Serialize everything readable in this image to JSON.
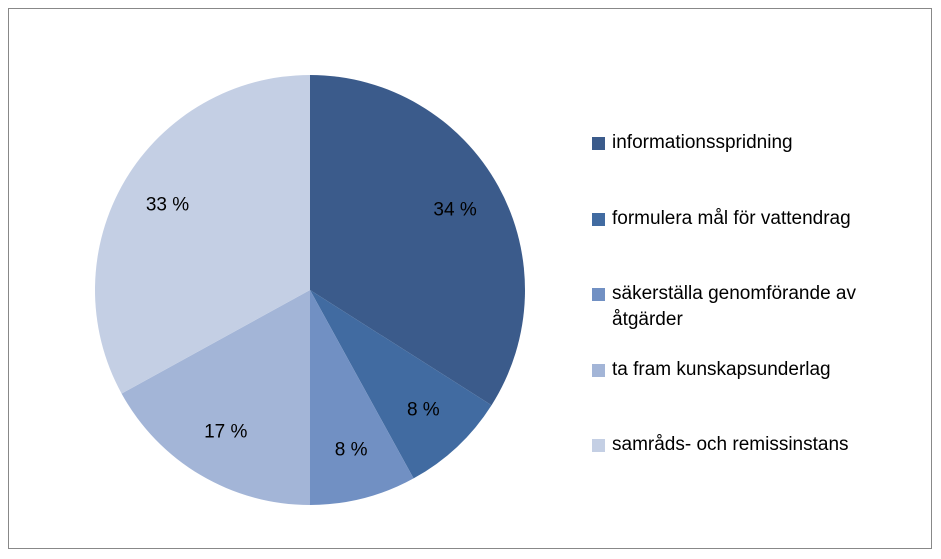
{
  "chart_data": {
    "type": "pie",
    "categories": [
      "informationsspridning",
      "formulera mål för vattendrag",
      "säkerställa genomförande av åtgärder",
      "ta fram kunskapsunderlag",
      "samråds- och remissinstans"
    ],
    "values": [
      34,
      8,
      8,
      17,
      33
    ],
    "value_labels": [
      "34 %",
      "8 %",
      "8 %",
      "17 %",
      "33 %"
    ],
    "colors": [
      "#3b5b8b",
      "#416ba1",
      "#7190c3",
      "#a3b5d7",
      "#c4cfe4"
    ],
    "legend": "right"
  }
}
